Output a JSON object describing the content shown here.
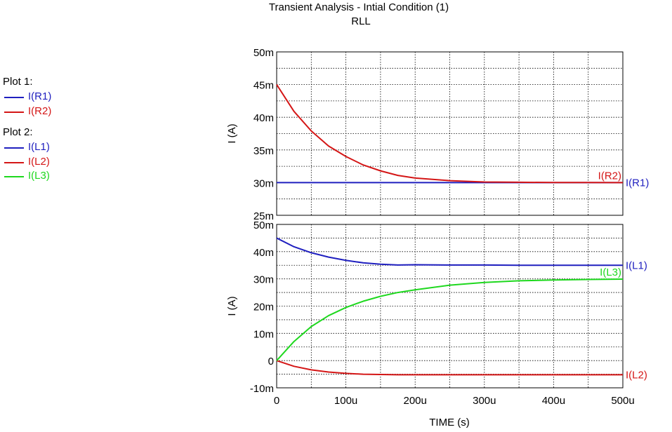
{
  "title": "Transient Analysis - Intial Condition (1)",
  "subtitle": "RLL",
  "legend": [
    {
      "header": "Plot 1:",
      "items": [
        {
          "name": "I(R1)",
          "color": "#1f1fbf"
        },
        {
          "name": "I(R2)",
          "color": "#d41616"
        }
      ]
    },
    {
      "header": "Plot 2:",
      "items": [
        {
          "name": "I(L1)",
          "color": "#1f1fbf"
        },
        {
          "name": "I(L2)",
          "color": "#d41616"
        },
        {
          "name": "I(L3)",
          "color": "#1ed81e"
        }
      ]
    }
  ],
  "chart_data": [
    {
      "type": "line",
      "xlabel": "",
      "ylabel": "I (A)",
      "xlim": [
        0,
        0.0005
      ],
      "ylim": [
        0.025,
        0.05
      ],
      "yticks": [
        {
          "v": 0.025,
          "label": "25m"
        },
        {
          "v": 0.03,
          "label": "30m"
        },
        {
          "v": 0.035,
          "label": "35m"
        },
        {
          "v": 0.04,
          "label": "40m"
        },
        {
          "v": 0.045,
          "label": "45m"
        },
        {
          "v": 0.05,
          "label": "50m"
        }
      ],
      "grid": true,
      "series": [
        {
          "name": "I(R1)",
          "color": "#1f1fbf",
          "x": [
            0,
            0.0005
          ],
          "y": [
            0.03,
            0.03
          ]
        },
        {
          "name": "I(R2)",
          "color": "#d41616",
          "x": [
            0,
            2.5e-05,
            5e-05,
            7.5e-05,
            0.0001,
            0.000125,
            0.00015,
            0.000175,
            0.0002,
            0.00025,
            0.0003,
            0.00035,
            0.0004,
            0.00045,
            0.0005
          ],
          "y": [
            0.045,
            0.0409,
            0.0379,
            0.0356,
            0.034,
            0.0327,
            0.0318,
            0.0311,
            0.0307,
            0.0303,
            0.0301,
            0.03005,
            0.03002,
            0.03001,
            0.03
          ]
        }
      ],
      "end_labels": [
        {
          "text": "I(R2)",
          "series": "I(R2)",
          "position": "above-inside"
        },
        {
          "text": "I(R1)",
          "series": "I(R1)",
          "position": "right-outside"
        }
      ]
    },
    {
      "type": "line",
      "xlabel": "TIME  (s)",
      "ylabel": "I  (A)",
      "xlim": [
        0,
        0.0005
      ],
      "ylim": [
        -0.01,
        0.05
      ],
      "yticks": [
        {
          "v": -0.01,
          "label": "-10m"
        },
        {
          "v": 0,
          "label": "0"
        },
        {
          "v": 0.01,
          "label": "10m"
        },
        {
          "v": 0.02,
          "label": "20m"
        },
        {
          "v": 0.03,
          "label": "30m"
        },
        {
          "v": 0.04,
          "label": "40m"
        },
        {
          "v": 0.05,
          "label": "50m"
        }
      ],
      "xticks": [
        {
          "v": 0,
          "label": "0"
        },
        {
          "v": 0.0001,
          "label": "100u"
        },
        {
          "v": 0.0002,
          "label": "200u"
        },
        {
          "v": 0.0003,
          "label": "300u"
        },
        {
          "v": 0.0004,
          "label": "400u"
        },
        {
          "v": 0.0005,
          "label": "500u"
        }
      ],
      "grid": true,
      "series": [
        {
          "name": "I(L1)",
          "color": "#1f1fbf",
          "x": [
            0,
            2.5e-05,
            5e-05,
            7.5e-05,
            0.0001,
            0.000125,
            0.00015,
            0.000175,
            0.0002,
            0.00025,
            0.0003,
            0.00035,
            0.0004,
            0.00045,
            0.0005
          ],
          "y": [
            0.045,
            0.0418,
            0.0396,
            0.038,
            0.0368,
            0.0359,
            0.0354,
            0.0351,
            0.0352,
            0.0351,
            0.0351,
            0.035,
            0.035,
            0.035,
            0.035
          ]
        },
        {
          "name": "I(L2)",
          "color": "#d41616",
          "x": [
            0,
            2.5e-05,
            5e-05,
            7.5e-05,
            0.0001,
            0.000125,
            0.00015,
            0.000175,
            0.0002,
            0.00025,
            0.0003,
            0.00035,
            0.0004,
            0.00045,
            0.0005
          ],
          "y": [
            0,
            -0.0021,
            -0.0034,
            -0.0042,
            -0.0047,
            -0.005,
            -0.0051,
            -0.0052,
            -0.0052,
            -0.0052,
            -0.0052,
            -0.0052,
            -0.0052,
            -0.0052,
            -0.0052
          ]
        },
        {
          "name": "I(L3)",
          "color": "#1ed81e",
          "x": [
            0,
            2.5e-05,
            5e-05,
            7.5e-05,
            0.0001,
            0.000125,
            0.00015,
            0.000175,
            0.0002,
            0.00025,
            0.0003,
            0.00035,
            0.0004,
            0.00045,
            0.0005
          ],
          "y": [
            0,
            0.007,
            0.0125,
            0.0165,
            0.0195,
            0.0218,
            0.0236,
            0.025,
            0.026,
            0.0277,
            0.0287,
            0.0293,
            0.0296,
            0.0298,
            0.0299
          ]
        }
      ],
      "end_labels": [
        {
          "text": "I(L3)",
          "series": "I(L3)",
          "position": "above-inside"
        },
        {
          "text": "I(L1)",
          "series": "I(L1)",
          "position": "right-outside"
        },
        {
          "text": "I(L2)",
          "series": "I(L2)",
          "position": "right-outside"
        }
      ]
    }
  ]
}
